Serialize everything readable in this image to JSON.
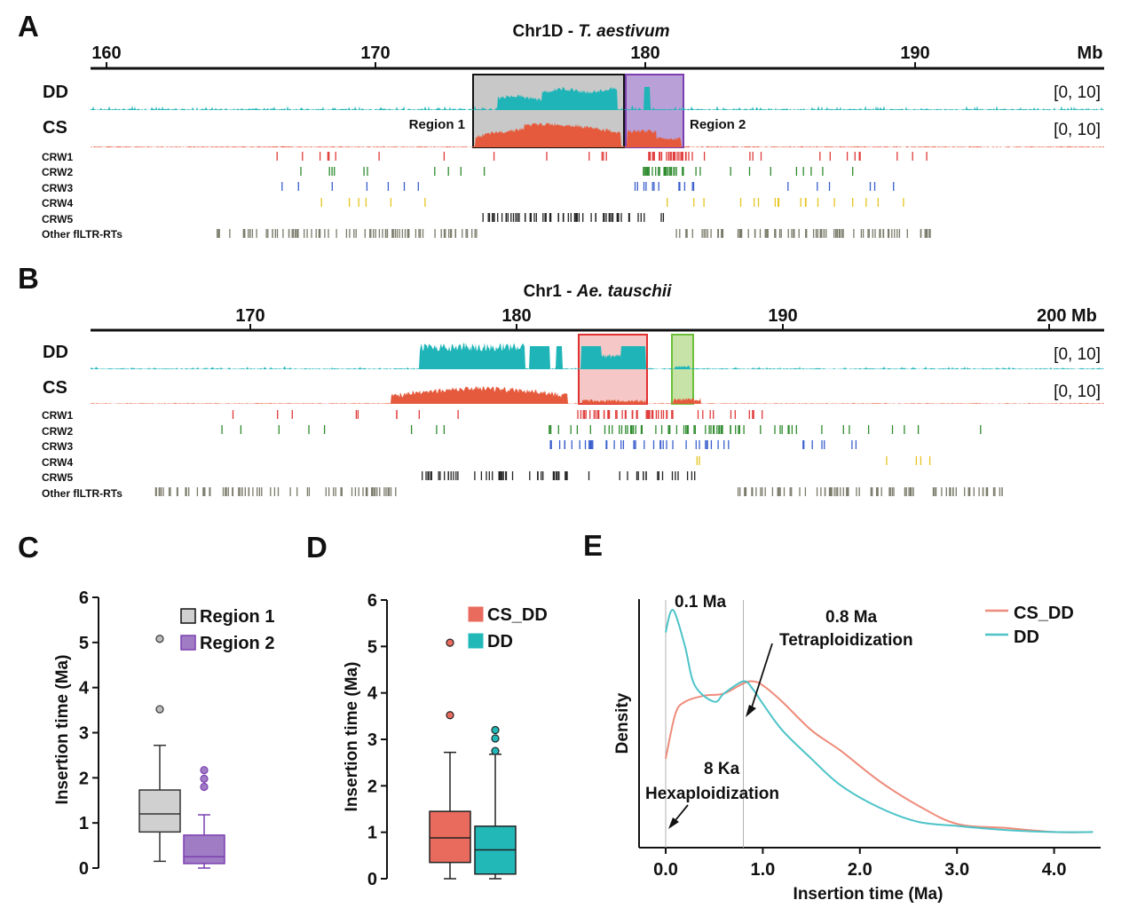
{
  "colors": {
    "dd": "#1fb5b8",
    "cs": "#e55a3c",
    "crw1": "#e03b3b",
    "crw2": "#2e8b2e",
    "crw3": "#3a5fcd",
    "crw4": "#e6c41e",
    "crw5": "#222222",
    "other": "#7a7a6a",
    "region1_fill": "#c8c8c8",
    "region2_fill": "#b9a0d6",
    "region2_stroke": "#7b3fb0",
    "redbox_fill": "#f6c7c7",
    "redbox_stroke": "#e03030",
    "greenbox_fill": "#c7e3a8",
    "greenbox_stroke": "#6cbf3a",
    "box_gray": "#d0d0d0",
    "box_purple": "#a07cc5",
    "box_csdd": "#e86b5e",
    "box_dd": "#22b8b8"
  },
  "panels": {
    "A": {
      "label": "A",
      "title_plain": "Chr1D - ",
      "title_italic": "T. aestivum",
      "axis_unit": "Mb",
      "ticks": [
        "160",
        "170",
        "180",
        "190"
      ],
      "track_dd": "DD",
      "track_cs": "CS",
      "range_dd": "[0, 10]",
      "range_cs": "[0, 10]",
      "region1_label": "Region 1",
      "region2_label": "Region 2",
      "crw_labels": [
        "CRW1",
        "CRW2",
        "CRW3",
        "CRW4",
        "CRW5",
        "Other flLTR-RTs"
      ]
    },
    "B": {
      "label": "B",
      "title_plain": "Chr1 - ",
      "title_italic": "Ae. tauschii",
      "ticks": [
        "170",
        "180",
        "190",
        "200 Mb"
      ],
      "track_dd": "DD",
      "track_cs": "CS",
      "range_dd": "[0, 10]",
      "range_cs": "[0, 10]",
      "crw_labels": [
        "CRW1",
        "CRW2",
        "CRW3",
        "CRW4",
        "CRW5",
        "Other flLTR-RTs"
      ]
    },
    "C": {
      "label": "C"
    },
    "D": {
      "label": "D"
    },
    "E": {
      "label": "E"
    }
  },
  "chart_data": [
    {
      "type": "box",
      "panel": "C",
      "ylabel": "Insertion time (Ma)",
      "ylim": [
        0,
        6
      ],
      "yticks": [
        "0",
        "1",
        "2",
        "3",
        "4",
        "5",
        "6"
      ],
      "series": [
        {
          "name": "Region 1",
          "min": 0.15,
          "q1": 0.8,
          "median": 1.2,
          "q3": 1.73,
          "max": 2.72,
          "outliers": [
            3.52,
            5.08
          ]
        },
        {
          "name": "Region 2",
          "min": 0.0,
          "q1": 0.1,
          "median": 0.25,
          "q3": 0.73,
          "max": 1.18,
          "outliers": [
            1.8,
            1.98,
            2.17
          ]
        }
      ]
    },
    {
      "type": "box",
      "panel": "D",
      "ylabel": "Insertion time (Ma)",
      "ylim": [
        0,
        6
      ],
      "yticks": [
        "0",
        "1",
        "2",
        "3",
        "4",
        "5",
        "6"
      ],
      "series": [
        {
          "name": "CS_DD",
          "min": 0.0,
          "q1": 0.35,
          "median": 0.88,
          "q3": 1.45,
          "max": 2.72,
          "outliers": [
            3.52,
            5.08
          ]
        },
        {
          "name": "DD",
          "min": 0.0,
          "q1": 0.1,
          "median": 0.62,
          "q3": 1.13,
          "max": 2.68,
          "outliers": [
            2.75,
            3.02,
            3.2
          ]
        }
      ]
    },
    {
      "type": "line",
      "panel": "E",
      "xlabel": "Insertion time (Ma)",
      "ylabel": "Density",
      "xlim": [
        -0.3,
        4.4
      ],
      "xticks": [
        "0.0",
        "1.0",
        "2.0",
        "3.0",
        "4.0"
      ],
      "series": [
        {
          "name": "CS_DD",
          "x": [
            0.0,
            0.1,
            0.2,
            0.4,
            0.6,
            0.8,
            0.9,
            1.0,
            1.2,
            1.5,
            1.8,
            2.2,
            2.6,
            3.0,
            3.5,
            4.0,
            4.4
          ],
          "y": [
            0.38,
            0.6,
            0.66,
            0.69,
            0.7,
            0.75,
            0.76,
            0.74,
            0.66,
            0.52,
            0.42,
            0.27,
            0.15,
            0.06,
            0.04,
            0.02,
            0.02
          ]
        },
        {
          "name": "DD",
          "x": [
            0.0,
            0.05,
            0.1,
            0.2,
            0.3,
            0.5,
            0.6,
            0.8,
            0.9,
            1.0,
            1.2,
            1.5,
            1.8,
            2.2,
            2.6,
            3.0,
            3.5,
            4.0,
            4.4
          ],
          "y": [
            1.0,
            1.1,
            1.09,
            0.93,
            0.74,
            0.66,
            0.7,
            0.76,
            0.72,
            0.65,
            0.52,
            0.38,
            0.25,
            0.14,
            0.07,
            0.05,
            0.03,
            0.02,
            0.02
          ]
        }
      ],
      "annotations": [
        "0.1 Ma",
        "0.8  Ma",
        "Tetraploidization",
        "8 Ka",
        "Hexaploidization"
      ],
      "vlines": [
        0.0,
        0.8
      ]
    }
  ]
}
